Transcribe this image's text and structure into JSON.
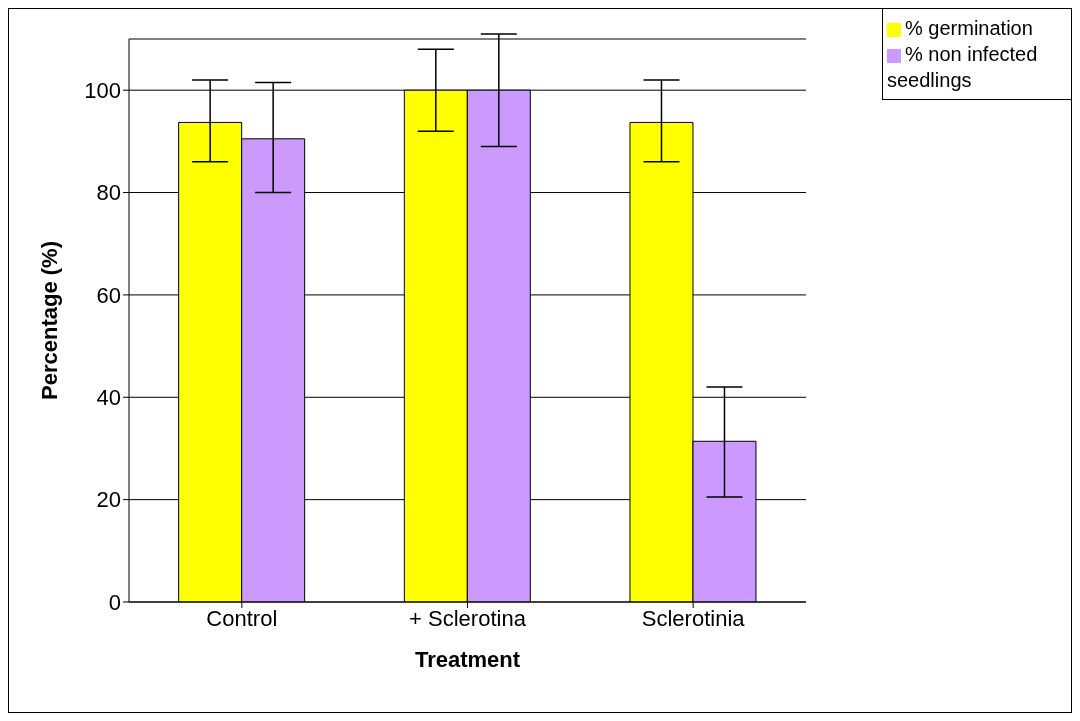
{
  "chart_data": {
    "type": "bar",
    "xlabel": "Treatment",
    "ylabel": "Percentage (%)",
    "categories": [
      "Control",
      "+ Sclerotina",
      "Sclerotinia"
    ],
    "series": [
      {
        "name": "% germination",
        "color": "#ffff00",
        "values": [
          93.7,
          100,
          93.7
        ],
        "errors": [
          [
            86,
            102
          ],
          [
            92,
            108
          ],
          [
            86,
            102
          ]
        ]
      },
      {
        "name": "% non infected seedlings",
        "color": "#cc99ff",
        "values": [
          90.5,
          100,
          31.4
        ],
        "errors": [
          [
            80,
            101.5
          ],
          [
            89,
            111
          ],
          [
            20.5,
            42
          ]
        ]
      }
    ],
    "ylim": [
      0,
      110
    ],
    "yticks": [
      0,
      20,
      40,
      60,
      80,
      100
    ],
    "grid": "y",
    "legend": "top right"
  }
}
